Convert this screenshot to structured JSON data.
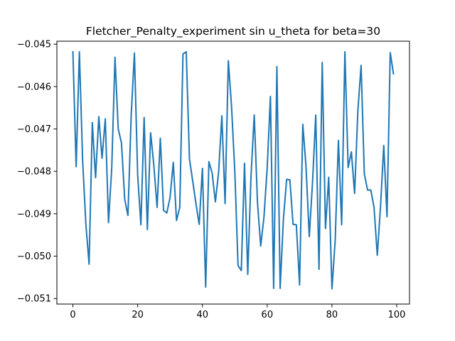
{
  "chart_data": {
    "type": "line",
    "title": "Fletcher_Penalty_experiment sin u_theta for beta=30",
    "xlabel": "",
    "ylabel": "",
    "xlim": [
      -4.95,
      103.95
    ],
    "ylim": [
      -0.05113,
      -0.04493
    ],
    "x_ticks": [
      0,
      20,
      40,
      60,
      80,
      100
    ],
    "x_tick_labels": [
      "0",
      "20",
      "40",
      "60",
      "80",
      "100"
    ],
    "y_ticks": [
      -0.051,
      -0.05,
      -0.049,
      -0.048,
      -0.047,
      -0.046,
      -0.045
    ],
    "y_tick_labels": [
      "−0.051",
      "−0.050",
      "−0.049",
      "−0.048",
      "−0.047",
      "−0.046",
      "−0.045"
    ],
    "grid": false,
    "series": [
      {
        "color": "#1f77b4",
        "x": [
          0,
          1,
          2,
          3,
          4,
          5,
          6,
          7,
          8,
          9,
          10,
          11,
          12,
          13,
          14,
          15,
          16,
          17,
          18,
          19,
          20,
          21,
          22,
          23,
          24,
          25,
          26,
          27,
          28,
          29,
          30,
          31,
          32,
          33,
          34,
          35,
          36,
          37,
          38,
          39,
          40,
          41,
          42,
          43,
          44,
          45,
          46,
          47,
          48,
          49,
          50,
          51,
          52,
          53,
          54,
          55,
          56,
          57,
          58,
          59,
          60,
          61,
          62,
          63,
          64,
          65,
          66,
          67,
          68,
          69,
          70,
          71,
          72,
          73,
          74,
          75,
          76,
          77,
          78,
          79,
          80,
          81,
          82,
          83,
          84,
          85,
          86,
          87,
          88,
          89,
          90,
          91,
          92,
          93,
          94,
          95,
          96,
          97,
          98,
          99
        ],
        "values": [
          -0.04518,
          -0.04789,
          -0.04518,
          -0.04773,
          -0.04924,
          -0.05019,
          -0.04685,
          -0.04815,
          -0.04671,
          -0.04769,
          -0.04676,
          -0.04921,
          -0.04791,
          -0.04531,
          -0.047,
          -0.04733,
          -0.04866,
          -0.04904,
          -0.04668,
          -0.04521,
          -0.04809,
          -0.04926,
          -0.04673,
          -0.04937,
          -0.04709,
          -0.04786,
          -0.04885,
          -0.04722,
          -0.04892,
          -0.04898,
          -0.04862,
          -0.04779,
          -0.04916,
          -0.04885,
          -0.04523,
          -0.04518,
          -0.04771,
          -0.04823,
          -0.04876,
          -0.04925,
          -0.04793,
          -0.05073,
          -0.04777,
          -0.04804,
          -0.04872,
          -0.04802,
          -0.04669,
          -0.04876,
          -0.04539,
          -0.04648,
          -0.048,
          -0.05022,
          -0.05034,
          -0.04781,
          -0.05043,
          -0.04812,
          -0.04667,
          -0.04873,
          -0.04976,
          -0.04908,
          -0.04792,
          -0.04623,
          -0.05076,
          -0.04553,
          -0.05076,
          -0.04914,
          -0.04819,
          -0.0482,
          -0.04925,
          -0.04926,
          -0.05068,
          -0.04689,
          -0.0479,
          -0.04954,
          -0.04826,
          -0.04667,
          -0.05031,
          -0.04543,
          -0.04935,
          -0.04814,
          -0.05077,
          -0.04963,
          -0.04727,
          -0.04926,
          -0.04518,
          -0.04791,
          -0.04754,
          -0.04852,
          -0.04658,
          -0.0455,
          -0.04806,
          -0.04844,
          -0.04844,
          -0.04885,
          -0.04998,
          -0.04883,
          -0.04739,
          -0.04907,
          -0.0452,
          -0.0457
        ]
      }
    ]
  }
}
